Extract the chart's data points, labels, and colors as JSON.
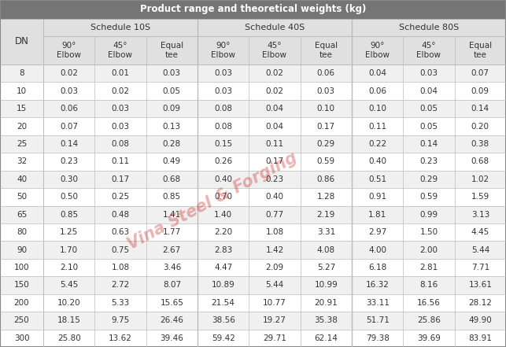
{
  "title": "Product range and theoretical weights (kg)",
  "schedules": [
    "Schedule 10S",
    "Schedule 40S",
    "Schedule 80S"
  ],
  "sub_headers": [
    "90°\nElbow",
    "45°\nElbow",
    "Equal\ntee"
  ],
  "dn_col": "DN",
  "rows": [
    [
      8,
      0.02,
      0.01,
      0.03,
      0.03,
      0.02,
      0.06,
      0.04,
      0.03,
      0.07
    ],
    [
      10,
      0.03,
      0.02,
      0.05,
      0.03,
      0.02,
      0.03,
      0.06,
      0.04,
      0.09
    ],
    [
      15,
      0.06,
      0.03,
      0.09,
      0.08,
      0.04,
      0.1,
      0.1,
      0.05,
      0.14
    ],
    [
      20,
      0.07,
      0.03,
      0.13,
      0.08,
      0.04,
      0.17,
      0.11,
      0.05,
      0.2
    ],
    [
      25,
      0.14,
      0.08,
      0.28,
      0.15,
      0.11,
      0.29,
      0.22,
      0.14,
      0.38
    ],
    [
      32,
      0.23,
      0.11,
      0.49,
      0.26,
      0.17,
      0.59,
      0.4,
      0.23,
      0.68
    ],
    [
      40,
      0.3,
      0.17,
      0.68,
      0.4,
      0.23,
      0.86,
      0.51,
      0.29,
      1.02
    ],
    [
      50,
      0.5,
      0.25,
      0.85,
      0.7,
      0.4,
      1.28,
      0.91,
      0.59,
      1.59
    ],
    [
      65,
      0.85,
      0.48,
      1.41,
      1.4,
      0.77,
      2.19,
      1.81,
      0.99,
      3.13
    ],
    [
      80,
      1.25,
      0.63,
      1.77,
      2.2,
      1.08,
      3.31,
      2.97,
      1.5,
      4.45
    ],
    [
      90,
      1.7,
      0.75,
      2.67,
      2.83,
      1.42,
      4.08,
      4.0,
      2.0,
      5.44
    ],
    [
      100,
      2.1,
      1.08,
      3.46,
      4.47,
      2.09,
      5.27,
      6.18,
      2.81,
      7.71
    ],
    [
      150,
      5.45,
      2.72,
      8.07,
      10.89,
      5.44,
      10.99,
      16.32,
      8.16,
      13.61
    ],
    [
      200,
      10.2,
      5.33,
      15.65,
      21.54,
      10.77,
      20.91,
      33.11,
      16.56,
      28.12
    ],
    [
      250,
      18.15,
      9.75,
      26.46,
      38.56,
      19.27,
      35.38,
      51.71,
      25.86,
      49.9
    ],
    [
      300,
      25.8,
      13.62,
      39.46,
      59.42,
      29.71,
      62.14,
      79.38,
      39.69,
      83.91
    ]
  ],
  "title_bg": "#757575",
  "title_fg": "#ffffff",
  "header1_bg": "#e0e0e0",
  "header2_bg": "#e0e0e0",
  "header_fg": "#333333",
  "row_bg_even": "#f0f0f0",
  "row_bg_odd": "#ffffff",
  "row_fg": "#333333",
  "grid_color": "#bbbbbb",
  "watermark_text": "Vina Steel & Forging",
  "watermark_color": "#cc2222",
  "fig_w": 6.43,
  "fig_h": 4.41,
  "dpi": 100
}
